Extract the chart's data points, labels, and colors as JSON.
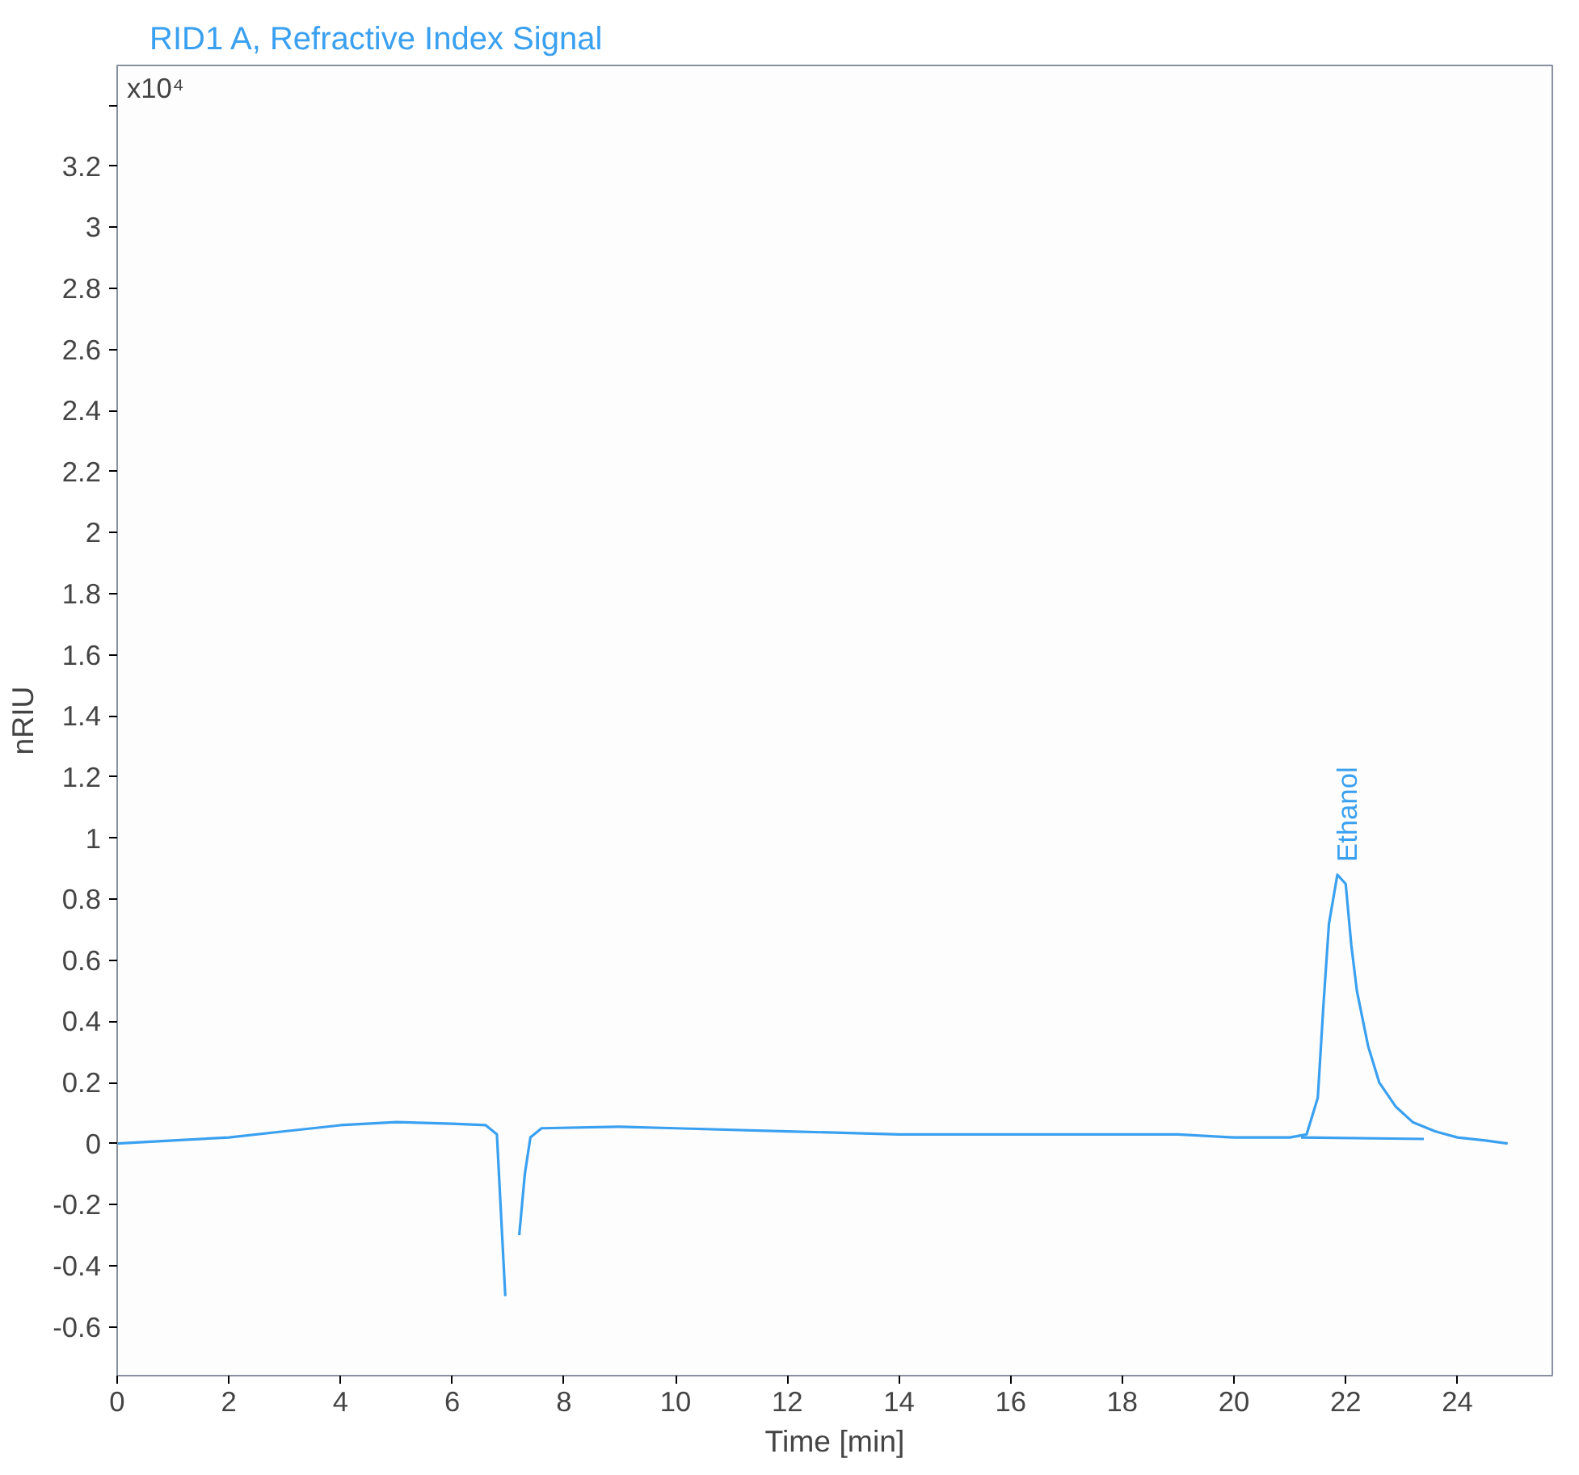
{
  "chart_data": {
    "type": "line",
    "title": "RID1 A, Refractive Index Signal",
    "xlabel": "Time [min]",
    "ylabel": "nRIU",
    "annotations": [
      "x10⁴",
      {
        "text": "Ethanol",
        "x": 21.85,
        "y": 0.88
      }
    ],
    "series": [
      {
        "color": "#3aa0f0",
        "x": [
          0,
          1,
          2,
          3,
          4,
          5,
          6,
          6.6,
          6.8,
          6.95,
          7.0,
          7.1,
          7.2,
          7.3,
          7.4,
          7.6,
          9,
          10,
          12,
          14,
          16,
          18,
          19,
          20,
          21,
          21.3,
          21.5,
          21.6,
          21.7,
          21.85,
          22.0,
          22.1,
          22.2,
          22.4,
          22.6,
          22.9,
          23.2,
          23.6,
          24,
          24.5,
          24.9
        ],
        "values": [
          0.0,
          0.01,
          0.02,
          0.04,
          0.06,
          0.07,
          0.065,
          0.06,
          0.03,
          -0.5,
          null,
          null,
          -0.3,
          -0.1,
          0.02,
          0.05,
          0.055,
          0.05,
          0.04,
          0.03,
          0.03,
          0.03,
          0.03,
          0.02,
          0.02,
          0.03,
          0.15,
          0.45,
          0.72,
          0.88,
          0.85,
          0.65,
          0.5,
          0.32,
          0.2,
          0.12,
          0.07,
          0.04,
          0.02,
          0.01,
          0.0
        ]
      },
      {
        "color": "#3aa0f0",
        "x": [
          21.2,
          23.4
        ],
        "values": [
          0.02,
          0.015
        ]
      }
    ],
    "xlim": [
      0,
      25.7
    ],
    "ylim": [
      -0.76,
      3.53
    ],
    "xticks": [
      0,
      2,
      4,
      6,
      8,
      10,
      12,
      14,
      16,
      18,
      20,
      22,
      24
    ],
    "yticks": [
      -0.6,
      -0.4,
      -0.2,
      0,
      0.2,
      0.4,
      0.6,
      0.8,
      1,
      1.2,
      1.4,
      1.6,
      1.8,
      2,
      2.2,
      2.4,
      2.6,
      2.8,
      3,
      3.2,
      {
        "value": 3.4,
        "label": null
      }
    ],
    "grid": false
  }
}
